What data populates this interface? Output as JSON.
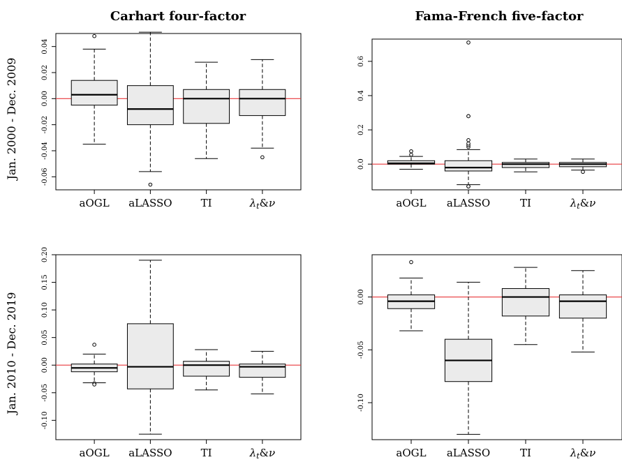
{
  "colors": {
    "box_fill": "#ebebeb",
    "reference_line": "#e8383b",
    "stroke": "#000000"
  },
  "col_titles": [
    "Carhart four-factor",
    "Fama-French five-factor"
  ],
  "row_titles": [
    "Jan. 2000 - Dec. 2009",
    "Jan. 2010 - Dec. 2019"
  ],
  "chart_data": [
    {
      "type": "box",
      "categories": [
        "aOGL",
        "aLASSO",
        "TI",
        "λt&ν"
      ],
      "ylim": [
        -0.07,
        0.05
      ],
      "yticks": [
        -0.06,
        -0.04,
        -0.02,
        0.0,
        0.02,
        0.04
      ],
      "ytick_labels": [
        "-0.06",
        "-0.04",
        "-0.02",
        "0.00",
        "0.02",
        "0.04"
      ],
      "reference_line": 0,
      "boxes": [
        {
          "whisker_low": -0.035,
          "q1": -0.005,
          "median": 0.003,
          "q3": 0.014,
          "whisker_high": 0.038,
          "outliers": [
            0.048
          ]
        },
        {
          "whisker_low": -0.056,
          "q1": -0.02,
          "median": -0.008,
          "q3": 0.01,
          "whisker_high": 0.051,
          "outliers": [
            -0.066
          ]
        },
        {
          "whisker_low": -0.046,
          "q1": -0.019,
          "median": 0.0,
          "q3": 0.007,
          "whisker_high": 0.028,
          "outliers": []
        },
        {
          "whisker_low": -0.038,
          "q1": -0.013,
          "median": 0.0,
          "q3": 0.007,
          "whisker_high": 0.03,
          "outliers": [
            -0.045
          ]
        }
      ]
    },
    {
      "type": "box",
      "categories": [
        "aOGL",
        "aLASSO",
        "TI",
        "λt&ν"
      ],
      "ylim": [
        -0.15,
        0.73
      ],
      "yticks": [
        0.0,
        0.2,
        0.4,
        0.6
      ],
      "ytick_labels": [
        "0.0",
        "0.2",
        "0.4",
        "0.6"
      ],
      "reference_line": 0,
      "boxes": [
        {
          "whisker_low": -0.03,
          "q1": 0.0,
          "median": 0.005,
          "q3": 0.02,
          "whisker_high": 0.045,
          "outliers": [
            0.055,
            0.075
          ]
        },
        {
          "whisker_low": -0.12,
          "q1": -0.04,
          "median": -0.02,
          "q3": 0.02,
          "whisker_high": 0.085,
          "outliers": [
            0.1,
            0.11,
            0.12,
            0.14,
            0.28,
            0.28,
            0.71,
            -0.13,
            -0.13
          ]
        },
        {
          "whisker_low": -0.045,
          "q1": -0.02,
          "median": 0.0,
          "q3": 0.01,
          "whisker_high": 0.03,
          "outliers": []
        },
        {
          "whisker_low": -0.035,
          "q1": -0.015,
          "median": 0.0,
          "q3": 0.01,
          "whisker_high": 0.03,
          "outliers": [
            -0.045
          ]
        }
      ]
    },
    {
      "type": "box",
      "categories": [
        "aOGL",
        "aLASSO",
        "TI",
        "λt&ν"
      ],
      "ylim": [
        -0.135,
        0.2
      ],
      "yticks": [
        -0.1,
        -0.05,
        0.0,
        0.05,
        0.1,
        0.15,
        0.2
      ],
      "ytick_labels": [
        "-0.10",
        "-0.05",
        "0.00",
        "0.05",
        "0.10",
        "0.15",
        "0.20"
      ],
      "reference_line": 0,
      "boxes": [
        {
          "whisker_low": -0.032,
          "q1": -0.012,
          "median": -0.005,
          "q3": 0.002,
          "whisker_high": 0.02,
          "outliers": [
            0.037,
            -0.033,
            -0.035
          ]
        },
        {
          "whisker_low": -0.125,
          "q1": -0.043,
          "median": -0.003,
          "q3": 0.075,
          "whisker_high": 0.19,
          "outliers": []
        },
        {
          "whisker_low": -0.045,
          "q1": -0.02,
          "median": 0.0,
          "q3": 0.007,
          "whisker_high": 0.028,
          "outliers": []
        },
        {
          "whisker_low": -0.052,
          "q1": -0.022,
          "median": -0.003,
          "q3": 0.002,
          "whisker_high": 0.025,
          "outliers": []
        }
      ]
    },
    {
      "type": "box",
      "categories": [
        "aOGL",
        "aLASSO",
        "TI",
        "λt&ν"
      ],
      "ylim": [
        -0.135,
        0.04
      ],
      "yticks": [
        -0.1,
        -0.05,
        0.0
      ],
      "ytick_labels": [
        "-0.10",
        "-0.05",
        "0.00"
      ],
      "reference_line": 0,
      "boxes": [
        {
          "whisker_low": -0.032,
          "q1": -0.011,
          "median": -0.004,
          "q3": 0.002,
          "whisker_high": 0.018,
          "outliers": [
            0.033
          ]
        },
        {
          "whisker_low": -0.13,
          "q1": -0.08,
          "median": -0.06,
          "q3": -0.04,
          "whisker_high": 0.014,
          "outliers": []
        },
        {
          "whisker_low": -0.045,
          "q1": -0.018,
          "median": 0.0,
          "q3": 0.008,
          "whisker_high": 0.028,
          "outliers": []
        },
        {
          "whisker_low": -0.052,
          "q1": -0.02,
          "median": -0.004,
          "q3": 0.002,
          "whisker_high": 0.025,
          "outliers": []
        }
      ]
    }
  ]
}
